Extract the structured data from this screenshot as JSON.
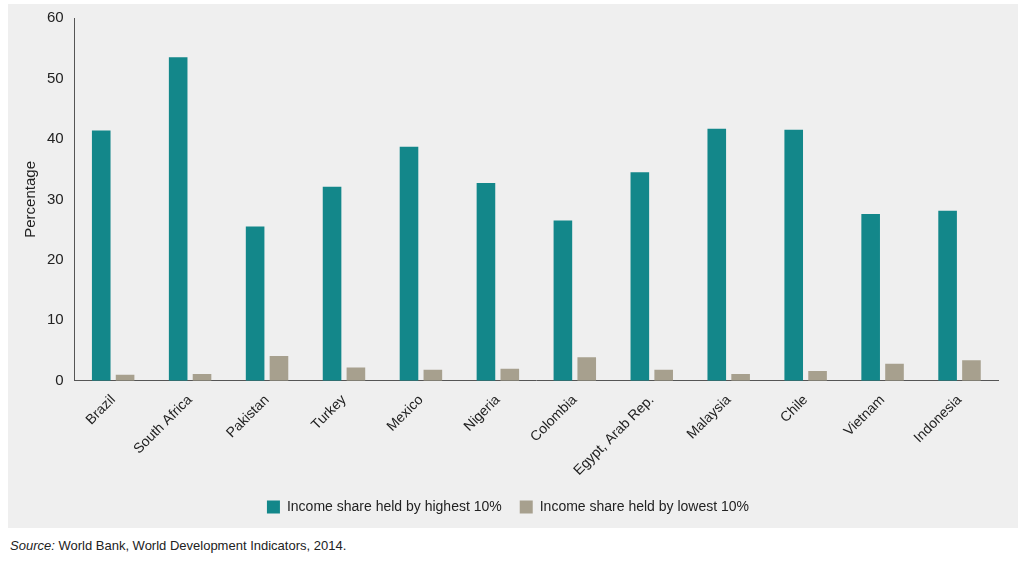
{
  "chart_data": {
    "type": "bar",
    "y_label": "Percentage",
    "source": "Source: World Bank, World Development Indicators, 2014.",
    "categories": [
      "Brazil",
      "South Africa",
      "Pakistan",
      "Turkey",
      "Mexico",
      "Nigeria",
      "Colombia",
      "Egypt, Arab Rep.",
      "Malaysia",
      "Chile",
      "Vietnam",
      "Indonesia"
    ],
    "series": [
      {
        "name": "Income share held by highest 10%",
        "color": "#13878a",
        "values": [
          41.4,
          53.5,
          25.5,
          32.1,
          38.7,
          32.7,
          26.5,
          34.5,
          41.7,
          41.5,
          27.6,
          28.1
        ]
      },
      {
        "name": "Income share held by lowest 10%",
        "color": "#a7a08e",
        "values": [
          1.0,
          1.1,
          4.1,
          2.2,
          1.8,
          2.0,
          3.9,
          1.8,
          1.1,
          1.6,
          2.8,
          3.4
        ]
      }
    ],
    "ylim": [
      0,
      60
    ],
    "yticks": [
      0,
      10,
      20,
      30,
      40,
      50,
      60
    ],
    "grid": false,
    "legend": "bottom"
  }
}
